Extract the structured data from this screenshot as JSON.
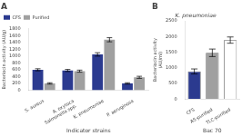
{
  "chart_data": [
    {
      "type": "bar",
      "title": "A",
      "xlabel": "Indicator strains",
      "ylabel": "Bacteriocin activity (AU/g)",
      "categories": [
        "S. aureus",
        "A. oxytoca\nSalmonella spp.",
        "K. pneumoniae",
        "P. aeruginosa"
      ],
      "series": [
        {
          "name": "CFS",
          "color": "#2b3a8f",
          "values": [
            600,
            580,
            1050,
            200
          ],
          "errors": [
            30,
            30,
            50,
            20
          ]
        },
        {
          "name": "Purified",
          "color": "#a0a0a0",
          "values": [
            200,
            560,
            1480,
            380
          ],
          "errors": [
            20,
            30,
            60,
            30
          ]
        }
      ],
      "ylim": [
        0,
        1800
      ],
      "yticks": [
        0,
        200,
        400,
        600,
        800,
        1000,
        1200,
        1400,
        1600,
        1800
      ],
      "legend": "upper left",
      "grid": false
    },
    {
      "type": "bar",
      "title": "B",
      "subtitle": "K. pneumoniae",
      "xlabel": "Bac 70",
      "ylabel": "Bacteriocin activity\n(AU/ml)",
      "categories": [
        "CFS",
        "AS-purified",
        "TLC-purified"
      ],
      "values": [
        883,
        1479,
        1885
      ],
      "errors": [
        80,
        120,
        100
      ],
      "colors": [
        "#2b3a8f",
        "#a0a0a0",
        "#ffffff"
      ],
      "ylim": [
        0,
        2500
      ],
      "yticks": [
        0,
        500,
        1000,
        1500,
        2000,
        2500
      ],
      "grid": false
    }
  ]
}
